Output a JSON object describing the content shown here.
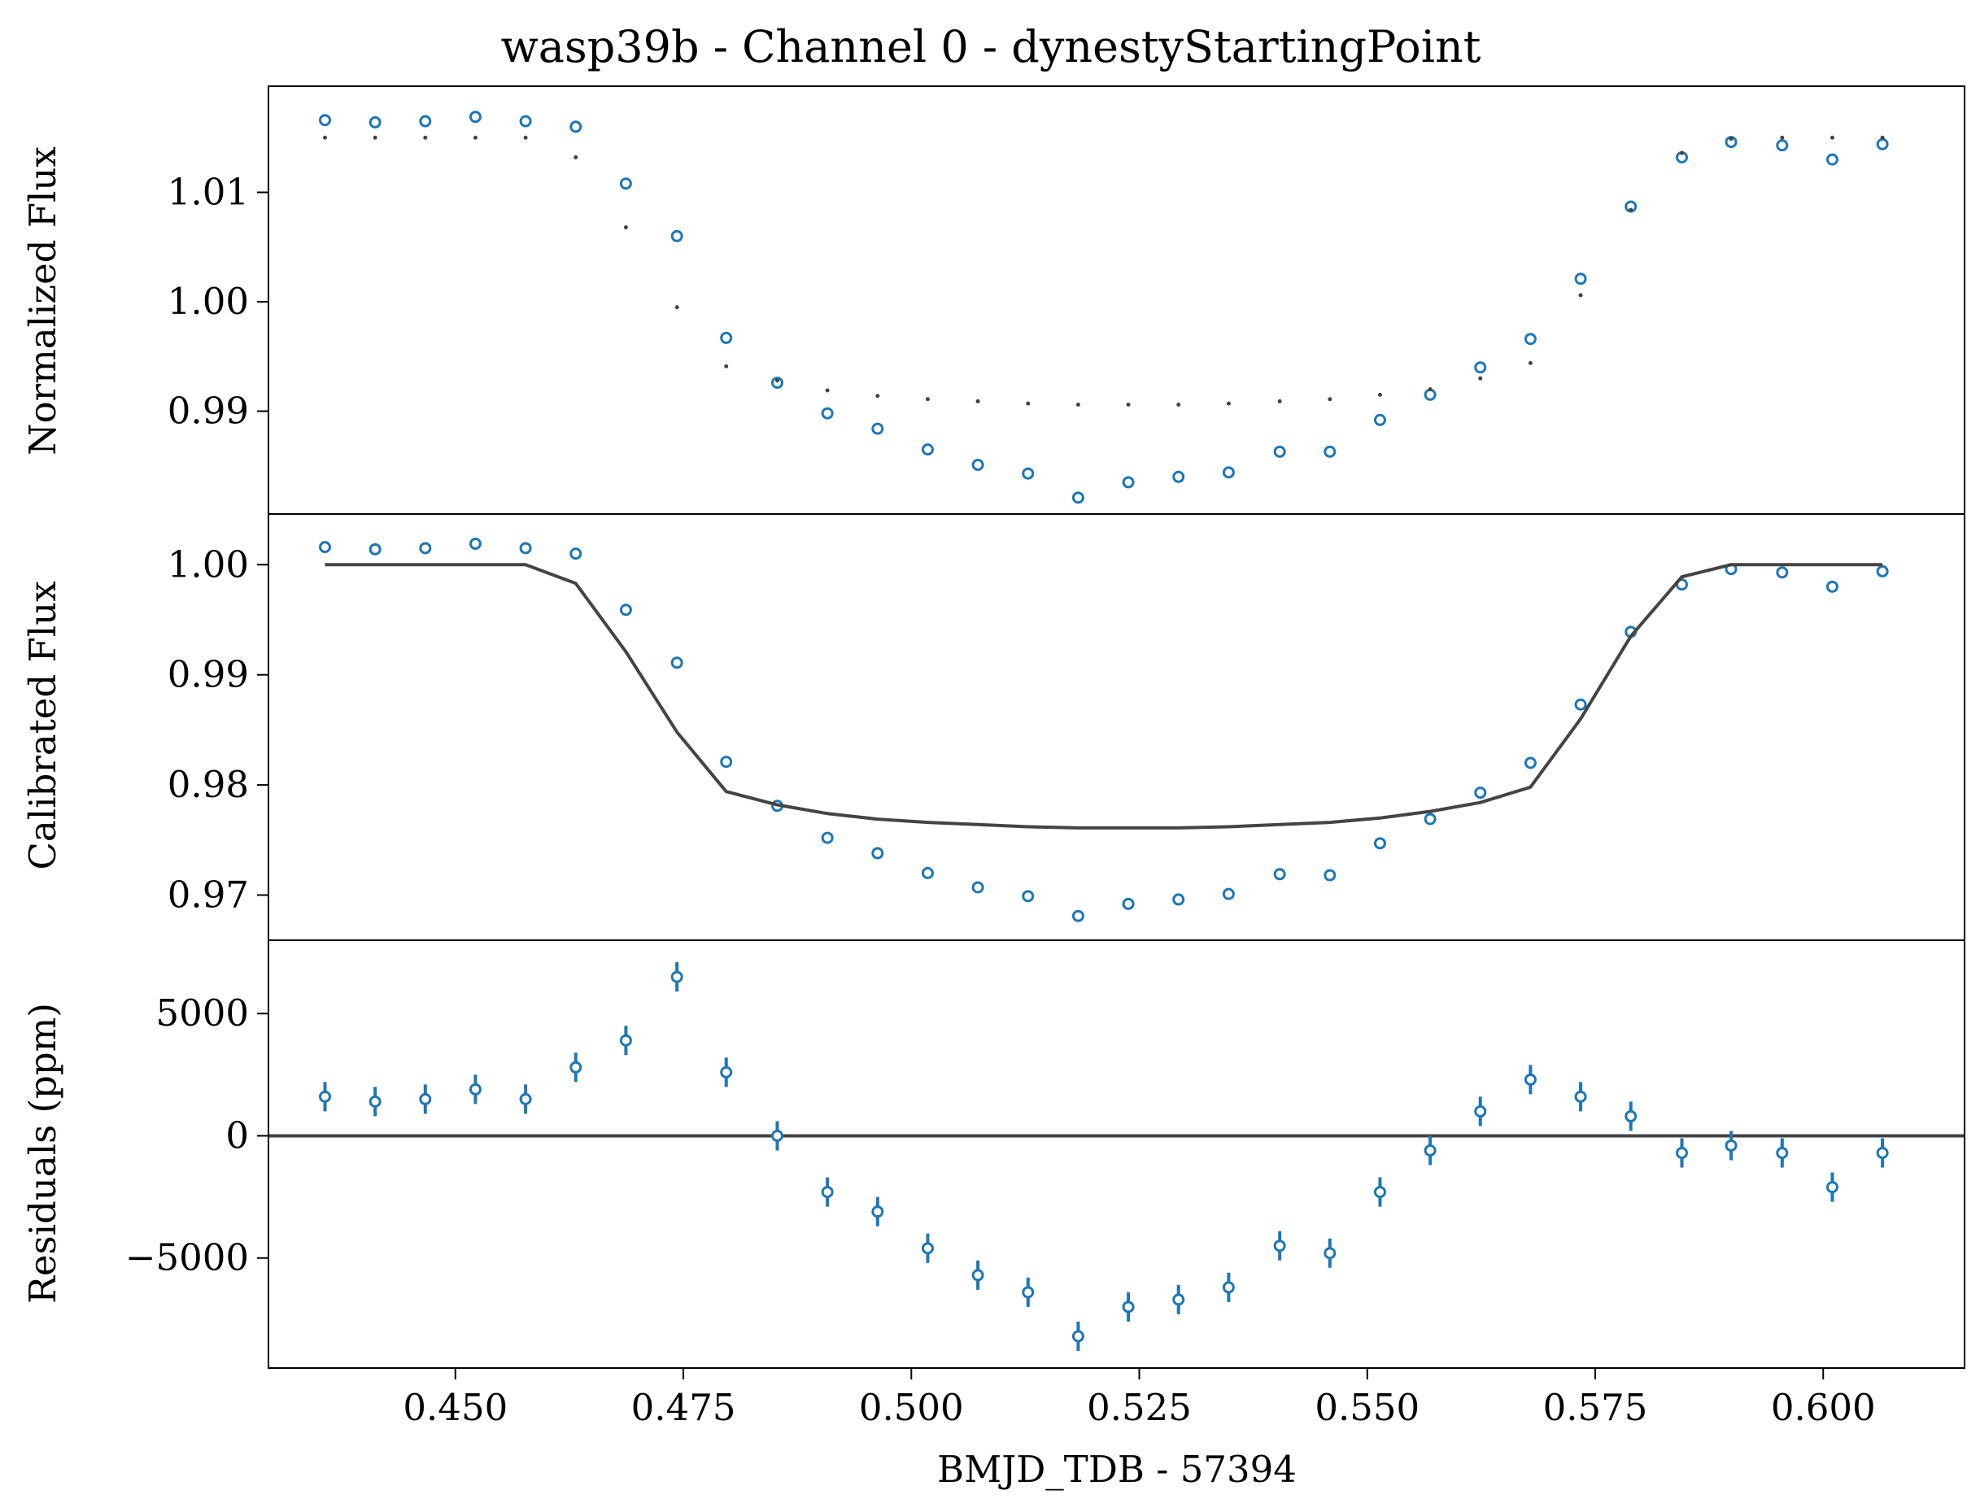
{
  "colors": {
    "data": "#1f77b4",
    "model": "#444444",
    "axes": "#000000"
  },
  "chart_data": [
    {
      "type": "scatter",
      "panel": "normalized",
      "title": "wasp39b - Channel 0 - dynestyStartingPoint",
      "ylabel": "Normalized Flux",
      "xlim": [
        0.4295,
        0.6155
      ],
      "ylim": [
        0.9806,
        1.0197
      ],
      "yticks": [
        {
          "v": 0.99,
          "label": "0.99"
        },
        {
          "v": 1.0,
          "label": "1.00"
        },
        {
          "v": 1.01,
          "label": "1.01"
        }
      ],
      "x": [
        0.4357,
        0.4412,
        0.4467,
        0.4522,
        0.4577,
        0.4632,
        0.4687,
        0.4743,
        0.4797,
        0.4853,
        0.4908,
        0.4963,
        0.5018,
        0.5073,
        0.5128,
        0.5183,
        0.5238,
        0.5293,
        0.5348,
        0.5404,
        0.5459,
        0.5514,
        0.5569,
        0.5624,
        0.5679,
        0.5734,
        0.5789,
        0.5845,
        0.5899,
        0.5955,
        0.601,
        0.6065
      ],
      "series": [
        {
          "name": "",
          "style": "open-circle",
          "values": [
            1.0166,
            1.0164,
            1.0165,
            1.0169,
            1.0165,
            1.016,
            1.0108,
            1.006,
            0.9967,
            0.9926,
            0.9898,
            0.9884,
            0.9865,
            0.9851,
            0.9843,
            0.9821,
            0.9835,
            0.984,
            0.9844,
            0.9863,
            0.9863,
            0.9892,
            0.9915,
            0.994,
            0.9966,
            1.0021,
            1.0087,
            1.0132,
            1.0146,
            1.0143,
            1.013,
            1.0144
          ]
        },
        {
          "name": "",
          "style": "dot",
          "values": [
            1.015,
            1.015,
            1.015,
            1.015,
            1.015,
            1.0132,
            1.0068,
            0.9995,
            0.9941,
            0.9928,
            0.9919,
            0.9914,
            0.9911,
            0.9909,
            0.9907,
            0.9906,
            0.9906,
            0.9906,
            0.9907,
            0.9909,
            0.9911,
            0.9915,
            0.992,
            0.993,
            0.9944,
            1.0006,
            1.0084,
            1.0136,
            1.0149,
            1.015,
            1.015,
            1.015
          ]
        }
      ]
    },
    {
      "type": "scatter",
      "panel": "calibrated",
      "ylabel": "Calibrated Flux",
      "xlim": [
        0.4295,
        0.6155
      ],
      "ylim": [
        0.9659,
        1.0046
      ],
      "yticks": [
        {
          "v": 0.97,
          "label": "0.97"
        },
        {
          "v": 0.98,
          "label": "0.98"
        },
        {
          "v": 0.99,
          "label": "0.99"
        },
        {
          "v": 1.0,
          "label": "1.00"
        }
      ],
      "x": [
        0.4357,
        0.4412,
        0.4467,
        0.4522,
        0.4577,
        0.4632,
        0.4687,
        0.4743,
        0.4797,
        0.4853,
        0.4908,
        0.4963,
        0.5018,
        0.5073,
        0.5128,
        0.5183,
        0.5238,
        0.5293,
        0.5348,
        0.5404,
        0.5459,
        0.5514,
        0.5569,
        0.5624,
        0.5679,
        0.5734,
        0.5789,
        0.5845,
        0.5899,
        0.5955,
        0.601,
        0.6065
      ],
      "series": [
        {
          "name": "",
          "style": "open-circle",
          "values": [
            1.0016,
            1.0014,
            1.0015,
            1.0019,
            1.0015,
            1.001,
            0.9959,
            0.9911,
            0.9821,
            0.9781,
            0.9752,
            0.9738,
            0.972,
            0.9707,
            0.9699,
            0.9681,
            0.9692,
            0.9696,
            0.9701,
            0.9719,
            0.9718,
            0.9747,
            0.9769,
            0.9793,
            0.982,
            0.9873,
            0.9939,
            0.9982,
            0.9996,
            0.9993,
            0.998,
            0.9994
          ]
        },
        {
          "name": "",
          "style": "line",
          "values": [
            1.0,
            1.0,
            1.0,
            1.0,
            1.0,
            0.9983,
            0.9921,
            0.9848,
            0.9794,
            0.9782,
            0.9774,
            0.9769,
            0.9766,
            0.9764,
            0.9762,
            0.9761,
            0.9761,
            0.9761,
            0.9762,
            0.9764,
            0.9766,
            0.977,
            0.9776,
            0.9784,
            0.9798,
            0.986,
            0.9935,
            0.9989,
            1.0,
            1.0,
            1.0,
            1.0
          ]
        }
      ]
    },
    {
      "type": "scatter",
      "panel": "residuals",
      "ylabel": "Residuals (ppm)",
      "xlabel": "BMJD_TDB - 57394",
      "xlim": [
        0.4295,
        0.6155
      ],
      "ylim": [
        -9500,
        8000
      ],
      "yticks": [
        {
          "v": -5000,
          "label": "−5000"
        },
        {
          "v": 0,
          "label": "0"
        },
        {
          "v": 5000,
          "label": "5000"
        }
      ],
      "xticks": [
        {
          "v": 0.45,
          "label": "0.450"
        },
        {
          "v": 0.475,
          "label": "0.475"
        },
        {
          "v": 0.5,
          "label": "0.500"
        },
        {
          "v": 0.525,
          "label": "0.525"
        },
        {
          "v": 0.55,
          "label": "0.550"
        },
        {
          "v": 0.575,
          "label": "0.575"
        },
        {
          "v": 0.6,
          "label": "0.600"
        }
      ],
      "x": [
        0.4357,
        0.4412,
        0.4467,
        0.4522,
        0.4577,
        0.4632,
        0.4687,
        0.4743,
        0.4797,
        0.4853,
        0.4908,
        0.4963,
        0.5018,
        0.5073,
        0.5128,
        0.5183,
        0.5238,
        0.5293,
        0.5348,
        0.5404,
        0.5459,
        0.5514,
        0.5569,
        0.5624,
        0.5679,
        0.5734,
        0.5789,
        0.5845,
        0.5899,
        0.5955,
        0.601,
        0.6065
      ],
      "zero_line": 0,
      "series": [
        {
          "name": "",
          "style": "open-circle-errorbar",
          "error": 600,
          "values": [
            1600,
            1400,
            1500,
            1900,
            1500,
            2800,
            3900,
            6500,
            2600,
            0,
            -2300,
            -3100,
            -4600,
            -5700,
            -6400,
            -8200,
            -7000,
            -6700,
            -6200,
            -4500,
            -4800,
            -2300,
            -600,
            1000,
            2300,
            1600,
            800,
            -700,
            -400,
            -700,
            -2100,
            -700
          ]
        }
      ]
    }
  ]
}
